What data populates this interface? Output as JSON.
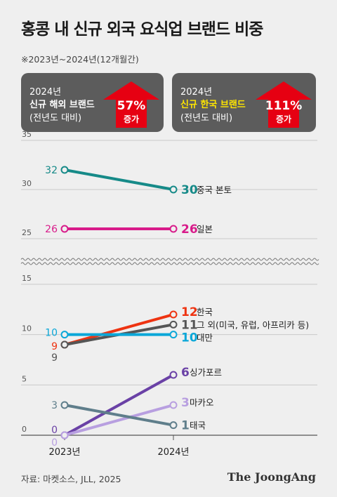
{
  "title": "홍콩 내 신규 외국 요식업 브랜드 비중",
  "subtitle": "※2023년~2024년(12개월간)",
  "boxes": {
    "foreign": {
      "year": "2024년",
      "label": "신규 해외 브랜드",
      "sub": "(전년도 대비)",
      "pct": "57%",
      "word": "증가"
    },
    "korean": {
      "year": "2024년",
      "label": "신규 한국 브랜드",
      "sub": "(전년도 대비)",
      "pct": "111%",
      "word": "증가"
    }
  },
  "source": "자료: 마켓소스, JLL, 2025",
  "brand": "The JoongAng",
  "colors": {
    "box_bg": "#5c5c5c",
    "arrow": "#e60012",
    "highlight": "#ffe600",
    "axis": "#444444"
  },
  "chart_data": {
    "type": "line",
    "x": [
      "2023년",
      "2024년"
    ],
    "axis_break": {
      "between": [
        15,
        25
      ]
    },
    "yticks": [
      0,
      5,
      10,
      15,
      25,
      30,
      35
    ],
    "series": [
      {
        "name": "중국 본토",
        "values": [
          32,
          30
        ],
        "start_label": "32",
        "end_label": "30",
        "color": "#168a88"
      },
      {
        "name": "일본",
        "values": [
          26,
          26
        ],
        "start_label": "26",
        "end_label": "26",
        "color": "#d81b8a"
      },
      {
        "name": "한국",
        "values": [
          9,
          12
        ],
        "start_label": "9",
        "end_label": "12",
        "color": "#ee3311"
      },
      {
        "name": "그 외(미국, 유럽, 아프리카 등)",
        "values": [
          9,
          11
        ],
        "start_label": "9",
        "end_label": "11",
        "color": "#555555"
      },
      {
        "name": "대만",
        "values": [
          10,
          10
        ],
        "start_label": "10",
        "end_label": "10",
        "color": "#0aa7d8"
      },
      {
        "name": "싱가포르",
        "values": [
          0,
          6
        ],
        "start_label": "0",
        "end_label": "6",
        "color": "#6a41a6"
      },
      {
        "name": "마카오",
        "values": [
          0,
          3
        ],
        "start_label": "0",
        "end_label": "3",
        "color": "#b89fe0"
      },
      {
        "name": "태국",
        "values": [
          3,
          1
        ],
        "start_label": "3",
        "end_label": "1",
        "color": "#5f7e8b"
      }
    ]
  }
}
